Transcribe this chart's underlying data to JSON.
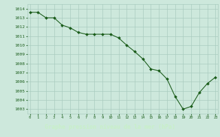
{
  "x": [
    0,
    1,
    2,
    3,
    4,
    5,
    6,
    7,
    8,
    9,
    10,
    11,
    12,
    13,
    14,
    15,
    16,
    17,
    18,
    19,
    20,
    21,
    22,
    23
  ],
  "y": [
    1013.6,
    1013.6,
    1013.0,
    1013.0,
    1012.2,
    1011.9,
    1011.4,
    1011.2,
    1011.2,
    1011.2,
    1011.2,
    1010.8,
    1010.0,
    1009.3,
    1008.5,
    1007.4,
    1007.2,
    1006.3,
    1004.4,
    1003.0,
    1003.3,
    1004.8,
    1005.8,
    1006.5
  ],
  "line_color": "#1a5c1a",
  "marker_color": "#1a5c1a",
  "bg_color": "#cde8dc",
  "grid_color": "#a8cbbe",
  "tick_color": "#1a5c1a",
  "ylim_min": 1002.5,
  "ylim_max": 1014.5,
  "xlim_min": -0.3,
  "xlim_max": 23.3,
  "bottom_bar_color": "#2d5c2d",
  "bottom_text_color": "#c8f0c8",
  "xlabel": "Graphe pression niveau de la mer (hPa)"
}
